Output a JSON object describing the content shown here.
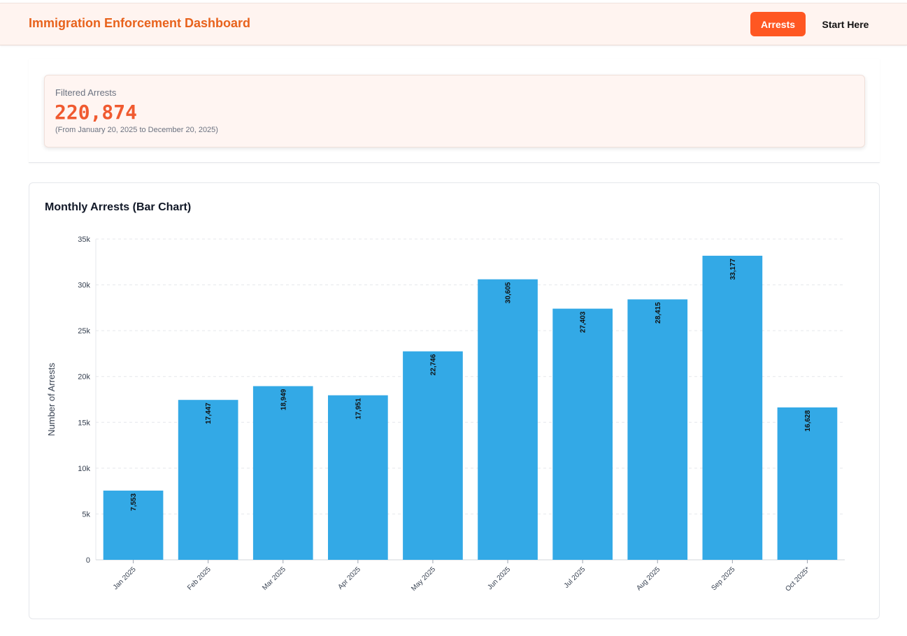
{
  "header": {
    "title": "Immigration Enforcement Dashboard",
    "nav": [
      {
        "label": "Arrests",
        "active": true
      },
      {
        "label": "Start Here",
        "active": false
      }
    ]
  },
  "summary": {
    "label": "Filtered Arrests",
    "value": "220,874",
    "range": "(From January 20, 2025 to December 20, 2025)"
  },
  "colors": {
    "accent": "#ff5722",
    "title": "#e8621c",
    "bar": "#33a9e6",
    "value": "#f05a30"
  },
  "chart_data": {
    "type": "bar",
    "title": "Monthly Arrests (Bar Chart)",
    "xlabel": "",
    "ylabel": "Number of Arrests",
    "ylim": [
      0,
      35000
    ],
    "yticks": [
      0,
      5000,
      10000,
      15000,
      20000,
      25000,
      30000,
      35000
    ],
    "ytick_labels": [
      "0",
      "5k",
      "10k",
      "15k",
      "20k",
      "25k",
      "30k",
      "35k"
    ],
    "grid": true,
    "categories": [
      "Jan 2025",
      "Feb 2025",
      "Mar 2025",
      "Apr 2025",
      "May 2025",
      "Jun 2025",
      "Jul 2025",
      "Aug 2025",
      "Sep 2025",
      "Oct 2025*"
    ],
    "values": [
      7553,
      17447,
      18949,
      17951,
      22746,
      30605,
      27403,
      28415,
      33177,
      16628
    ],
    "value_labels": [
      "7,553",
      "17,447",
      "18,949",
      "17,951",
      "22,746",
      "30,605",
      "27,403",
      "28,415",
      "33,177",
      "16,628"
    ]
  }
}
